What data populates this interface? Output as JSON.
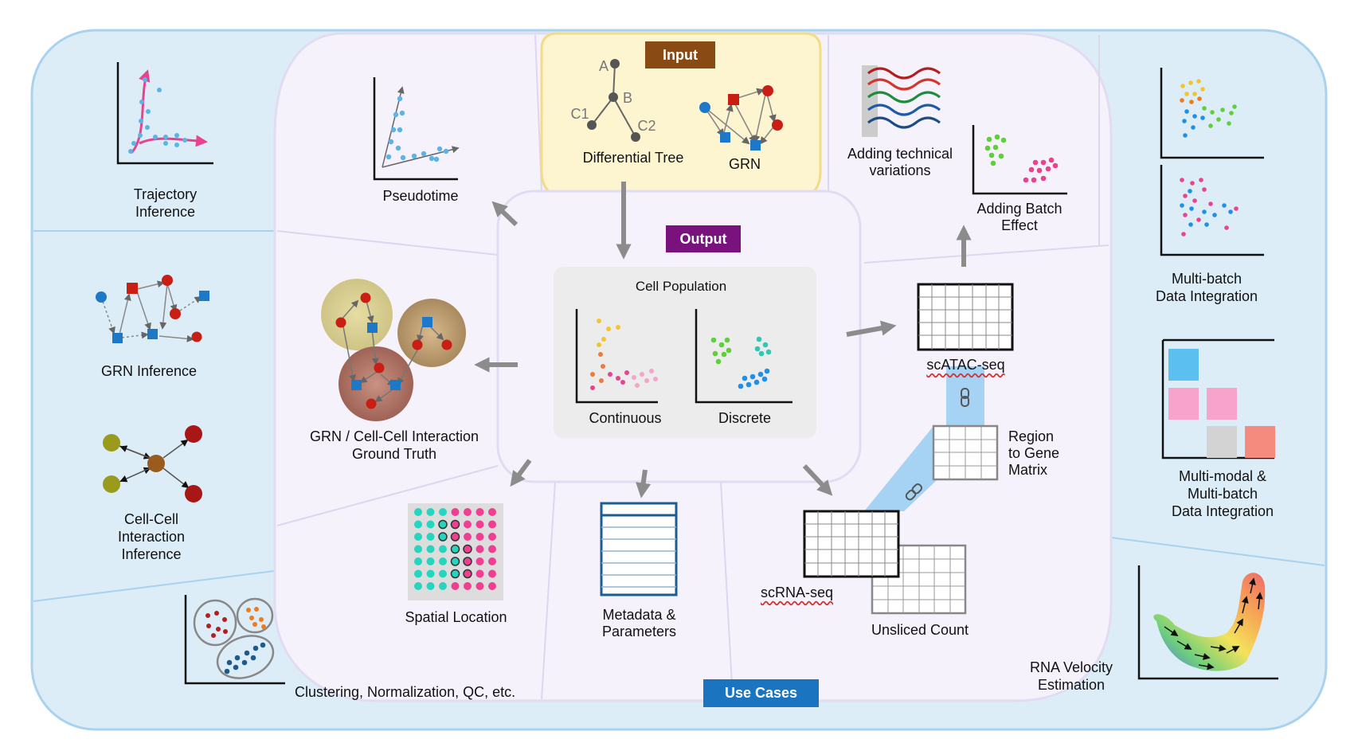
{
  "colors": {
    "outer_bg": "#dcedf8",
    "outer_border": "#a9d2ef",
    "middle_bg": "#f6f2fc",
    "middle_border": "#ddd6ef",
    "input_bg": "#fdf5d0",
    "input_border": "#f2dc86",
    "input_tag": "#8a4a14",
    "output_tag": "#7a127d",
    "use_cases_tag": "#1a74bf",
    "cell_pop_bg": "#ececec",
    "arrow": "#8c8c8c",
    "link_band": "#a6d3f3"
  },
  "tags": {
    "input": "Input",
    "output": "Output",
    "use_cases": "Use Cases"
  },
  "input": {
    "tree_label": "Differential Tree",
    "grn_label": "GRN",
    "nodes": [
      "A",
      "B",
      "C1",
      "C2"
    ]
  },
  "cell_population": {
    "title": "Cell Population",
    "continuous": "Continuous",
    "discrete": "Discrete"
  },
  "outputs": {
    "pseudotime": "Pseudotime",
    "technical": [
      "Adding technical",
      "variations"
    ],
    "batch": [
      "Adding Batch",
      "Effect"
    ],
    "grn_truth": [
      "GRN / Cell-Cell Interaction",
      "Ground Truth"
    ],
    "scatac": "scATAC-seq",
    "region": [
      "Region",
      "to Gene",
      "Matrix"
    ],
    "spatial": "Spatial Location",
    "metadata": [
      "Metadata &",
      "Parameters"
    ],
    "scrna": "scRNA-seq",
    "unspliced": "Unsliced Count"
  },
  "use_cases": {
    "trajectory": [
      "Trajectory",
      "Inference"
    ],
    "grn": "GRN Inference",
    "cci": [
      "Cell-Cell",
      "Interaction",
      "Inference"
    ],
    "clustering": "Clustering, Normalization, QC, etc.",
    "multibatch": [
      "Multi-batch",
      "Data Integration"
    ],
    "multimodal": [
      "Multi-modal &",
      "Multi-batch",
      "Data Integration"
    ],
    "velocity": [
      "RNA Velocity",
      "Estimation"
    ]
  }
}
